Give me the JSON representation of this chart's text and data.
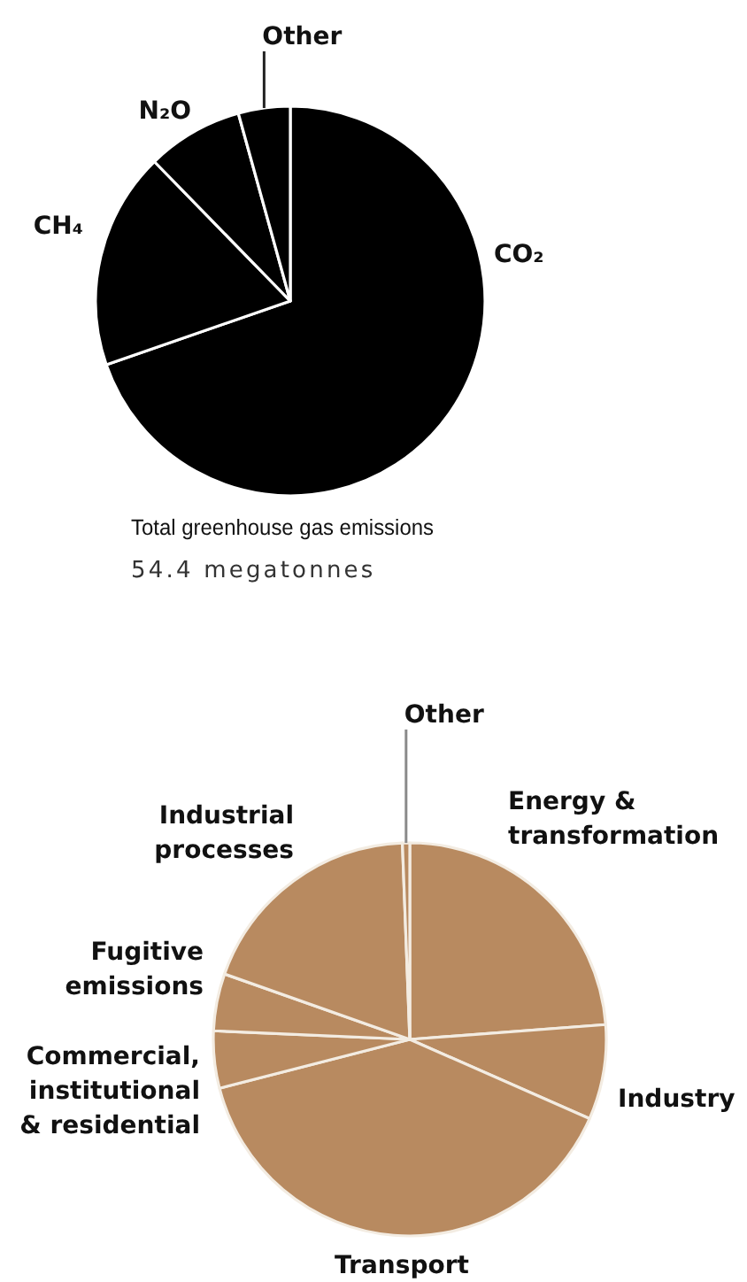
{
  "chart_data": [
    {
      "type": "pie",
      "categories": [
        "CO₂",
        "CH₄",
        "N₂O",
        "Other"
      ],
      "values": [
        69.7,
        18,
        8,
        4.3
      ],
      "colors": [
        "#000000",
        "#000000",
        "#000000",
        "#000000"
      ],
      "annotations": [
        "Total greenhouse gas emissions",
        "54.4 megatonnes"
      ]
    },
    {
      "type": "pie",
      "categories": [
        "Energy & transformation",
        "Industry",
        "Transport",
        "Commercial, institutional & residential",
        "Fugitive emissions",
        "Industrial processes",
        "Other"
      ],
      "values": [
        23.8,
        7.8,
        39.4,
        4.7,
        4.7,
        19,
        0.6
      ],
      "colors": [
        "#b88a60",
        "#b88a60",
        "#b88a60",
        "#b88a60",
        "#b88a60",
        "#b88a60",
        "#b88a60"
      ]
    }
  ]
}
